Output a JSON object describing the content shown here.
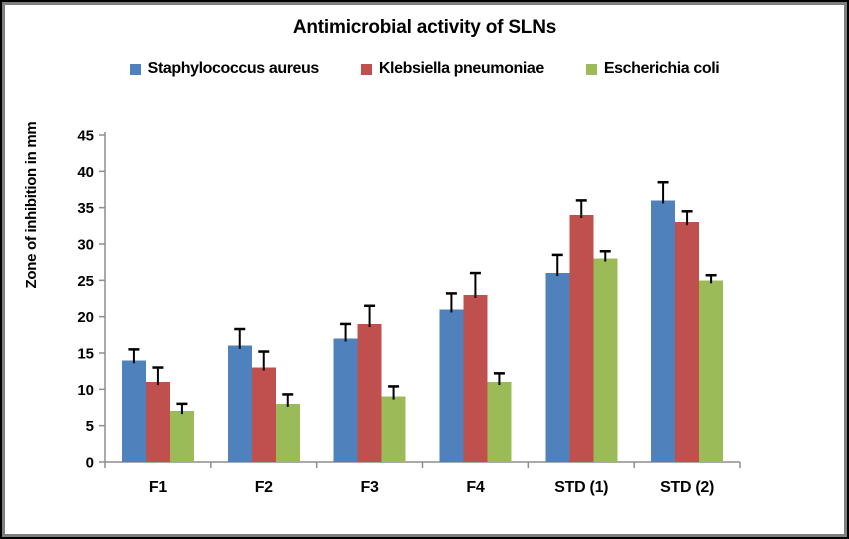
{
  "chart_data": {
    "type": "bar",
    "title": "Antimicrobial activity of SLNs",
    "ylabel": "Zone of inhibition in mm",
    "xlabel": "",
    "categories": [
      "F1",
      "F2",
      "F3",
      "F4",
      "STD (1)",
      "STD (2)"
    ],
    "series": [
      {
        "name": "Staphylococcus aureus",
        "color": "#4F81BD",
        "values": [
          14,
          16,
          17,
          21,
          26,
          36
        ],
        "errors": [
          1.5,
          2.3,
          2,
          2.2,
          2.5,
          2.5
        ]
      },
      {
        "name": "Klebsiella pneumoniae",
        "color": "#C0504D",
        "values": [
          11,
          13,
          19,
          23,
          34,
          33
        ],
        "errors": [
          2,
          2.2,
          2.5,
          3,
          2,
          1.5
        ]
      },
      {
        "name": "Escherichia coli",
        "color": "#9BBB59",
        "values": [
          7,
          8,
          9,
          11,
          28,
          25
        ],
        "errors": [
          1,
          1.3,
          1.4,
          1.2,
          1,
          0.7
        ]
      }
    ],
    "ylim": [
      0,
      45
    ],
    "ytick_step": 5,
    "grid": false,
    "legend_position": "top",
    "error_bars": "plus-direction with caps",
    "axis_color": "#8e8e8e",
    "error_bar_color": "#000000"
  }
}
